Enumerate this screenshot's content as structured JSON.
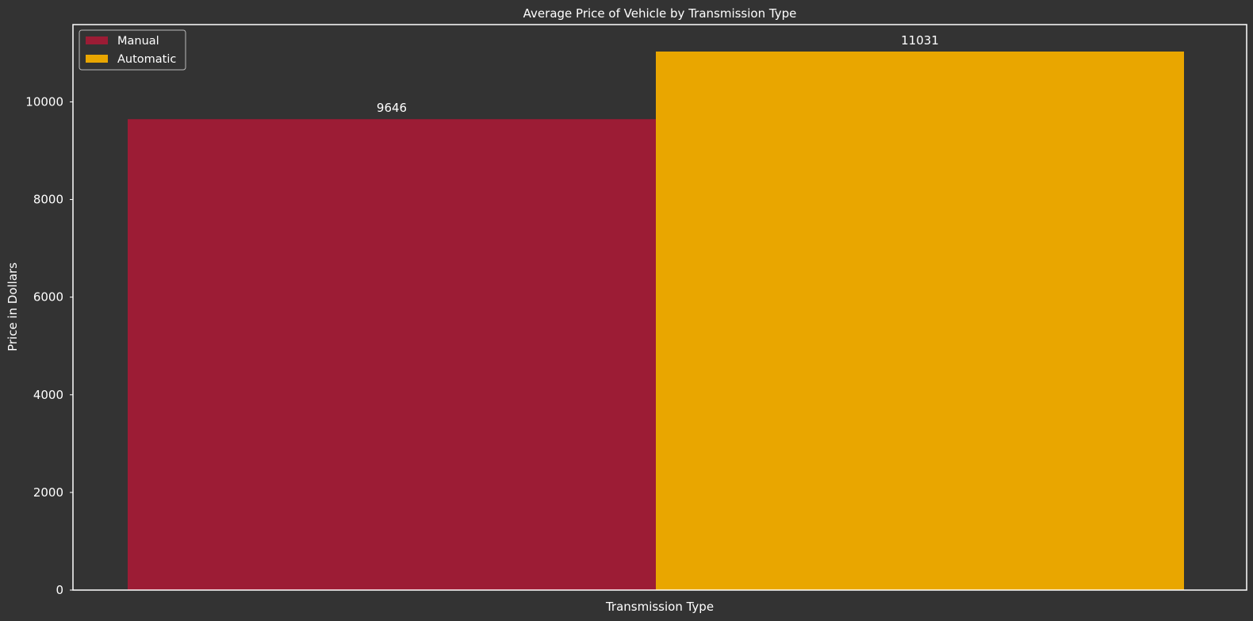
{
  "chart_data": {
    "type": "bar",
    "title": "Average Price of Vehicle by Transmission Type",
    "xlabel": "Transmission Type",
    "ylabel": "Price in Dollars",
    "ylim": [
      0,
      11583
    ],
    "yticks": [
      0,
      2000,
      4000,
      6000,
      8000,
      10000
    ],
    "grid": false,
    "legend_position": "top-left",
    "series": [
      {
        "name": "Manual",
        "value": 9646,
        "label": "9646",
        "color": "#9c1c35"
      },
      {
        "name": "Automatic",
        "value": 11031,
        "label": "11031",
        "color": "#e9a600"
      }
    ],
    "colors": {
      "background": "#333333",
      "axes_border": "#ffffff",
      "text": "#ffffff",
      "legend_background": "#333333",
      "legend_border": "#bbbbbb"
    }
  }
}
